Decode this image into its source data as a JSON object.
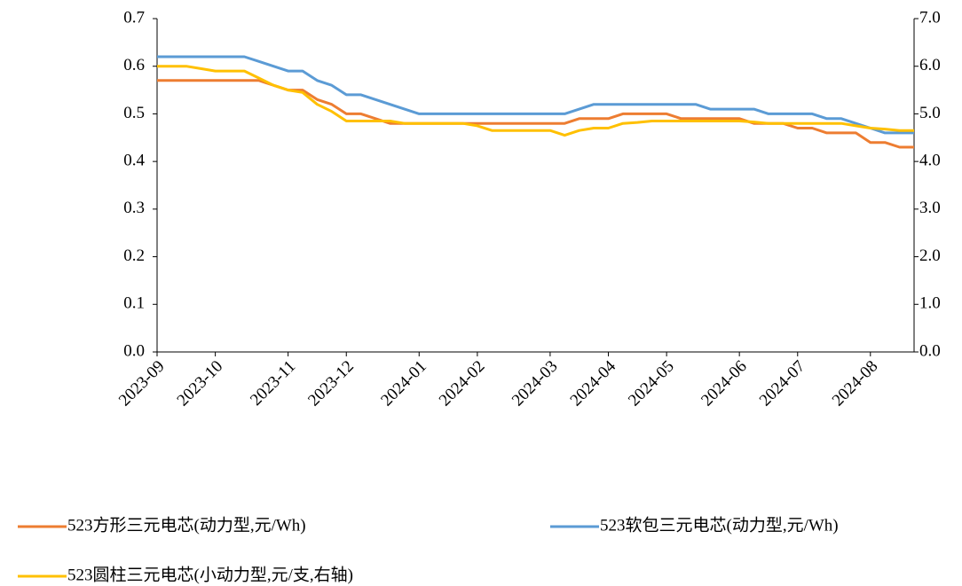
{
  "chart_data": {
    "type": "line",
    "categories": [
      "2023-09",
      null,
      null,
      null,
      "2023-10",
      null,
      null,
      null,
      null,
      "2023-11",
      null,
      null,
      null,
      "2023-12",
      null,
      null,
      null,
      null,
      "2024-01",
      null,
      null,
      null,
      "2024-02",
      null,
      null,
      null,
      null,
      "2024-03",
      null,
      null,
      null,
      "2024-04",
      null,
      null,
      null,
      "2024-05",
      null,
      null,
      null,
      null,
      "2024-06",
      null,
      null,
      null,
      "2024-07",
      null,
      null,
      null,
      null,
      "2024-08",
      null,
      null,
      null
    ],
    "series": [
      {
        "name": "523方形三元电芯(动力型,元/Wh)",
        "color": "#ED7D31",
        "values": [
          0.57,
          0.57,
          0.57,
          0.57,
          0.57,
          0.57,
          0.57,
          0.57,
          0.56,
          0.55,
          0.55,
          0.53,
          0.52,
          0.5,
          0.5,
          0.49,
          0.48,
          0.48,
          0.48,
          0.48,
          0.48,
          0.48,
          0.48,
          0.48,
          0.48,
          0.48,
          0.48,
          0.48,
          0.48,
          0.49,
          0.49,
          0.49,
          0.5,
          0.5,
          0.5,
          0.5,
          0.49,
          0.49,
          0.49,
          0.49,
          0.49,
          0.48,
          0.48,
          0.48,
          0.47,
          0.47,
          0.46,
          0.46,
          0.46,
          0.44,
          0.44,
          0.43,
          0.43
        ]
      },
      {
        "name": "523软包三元电芯(动力型,元/Wh)",
        "color": "#5B9BD5",
        "values": [
          0.62,
          0.62,
          0.62,
          0.62,
          0.62,
          0.62,
          0.62,
          0.61,
          0.6,
          0.59,
          0.59,
          0.57,
          0.56,
          0.54,
          0.54,
          0.53,
          0.52,
          0.51,
          0.5,
          0.5,
          0.5,
          0.5,
          0.5,
          0.5,
          0.5,
          0.5,
          0.5,
          0.5,
          0.5,
          0.51,
          0.52,
          0.52,
          0.52,
          0.52,
          0.52,
          0.52,
          0.52,
          0.52,
          0.51,
          0.51,
          0.51,
          0.51,
          0.5,
          0.5,
          0.5,
          0.5,
          0.49,
          0.49,
          0.48,
          0.47,
          0.46,
          0.46,
          0.46
        ]
      },
      {
        "name": "523圆柱三元电芯(小动力型,元/支,右轴)",
        "color": "#FFC000",
        "axis": "y2",
        "values": [
          6,
          6,
          6,
          5.95,
          5.9,
          5.9,
          5.9,
          5.75,
          5.6,
          5.5,
          5.45,
          5.2,
          5.05,
          4.85,
          4.85,
          4.85,
          4.85,
          4.8,
          4.8,
          4.8,
          4.8,
          4.8,
          4.75,
          4.65,
          4.65,
          4.65,
          4.65,
          4.65,
          4.55,
          4.65,
          4.7,
          4.7,
          4.8,
          4.82,
          4.85,
          4.85,
          4.85,
          4.85,
          4.85,
          4.85,
          4.85,
          4.83,
          4.8,
          4.8,
          4.8,
          4.8,
          4.8,
          4.8,
          4.75,
          4.7,
          4.68,
          4.65,
          4.65
        ]
      }
    ],
    "ylim": [
      0,
      0.7
    ],
    "yticks": [
      {
        "value": 0,
        "label": "0.0"
      },
      0.1,
      0.2,
      0.3,
      0.4,
      0.5,
      0.6,
      0.7
    ],
    "y2lim": [
      0,
      7
    ],
    "y2ticks": [
      {
        "value": 0,
        "label": "0.0"
      },
      {
        "value": 1,
        "label": "1.0"
      },
      {
        "value": 2,
        "label": "2.0"
      },
      {
        "value": 3,
        "label": "3.0"
      },
      {
        "value": 4,
        "label": "4.0"
      },
      {
        "value": 5,
        "label": "5.0"
      },
      {
        "value": 6,
        "label": "6.0"
      },
      {
        "value": 7,
        "label": "7.0"
      }
    ],
    "grid": false,
    "legend": "bottom"
  }
}
